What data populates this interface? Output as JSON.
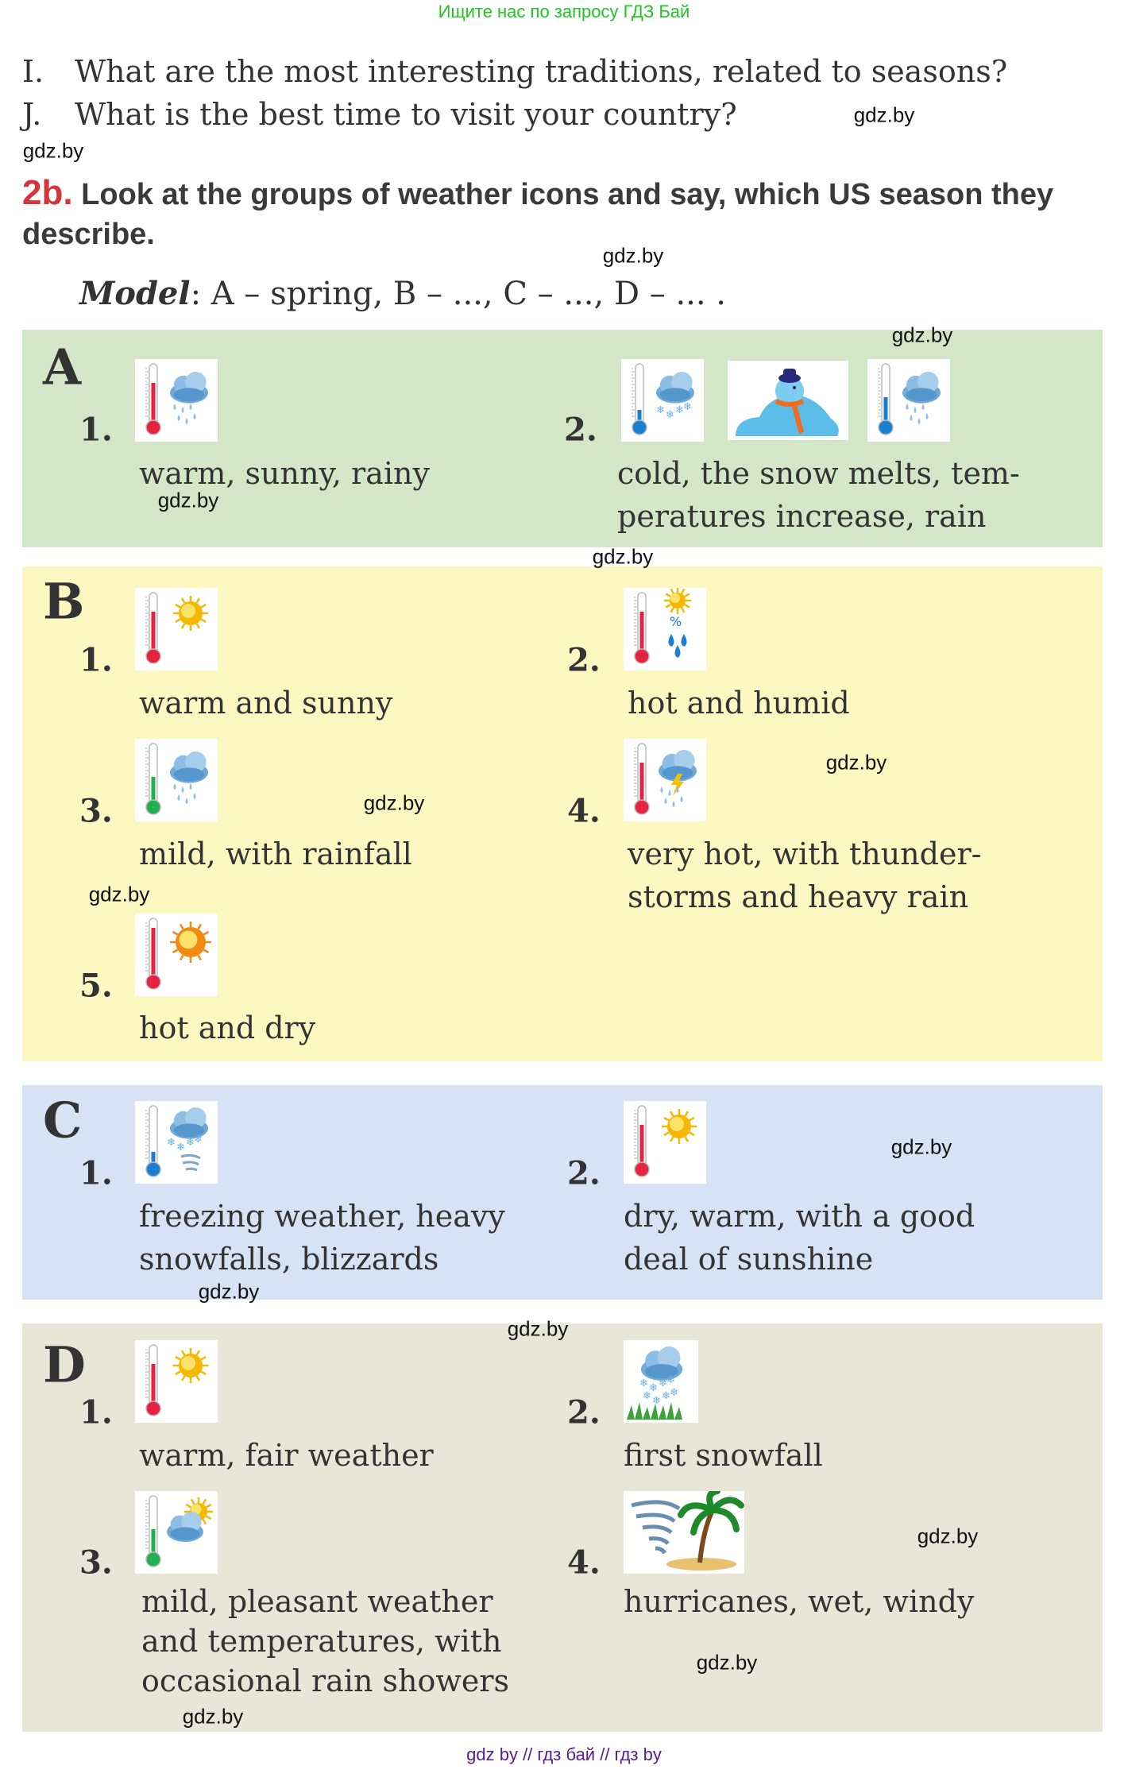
{
  "banner": "Ищите нас по запросу ГДЗ Бай",
  "questions": [
    {
      "label": "I.",
      "text": "What are the most interesting traditions, related to seasons?"
    },
    {
      "label": "J.",
      "text": "What is the best time to visit your country?"
    }
  ],
  "task": {
    "number": "2b.",
    "text": "Look at the groups of weather icons and say, which US season they describe."
  },
  "model": {
    "label": "Model",
    "text": ": A – spring, B – ..., C – ..., D – ... ."
  },
  "colors": {
    "A": "#d3e6c8",
    "B": "#fdf7c2",
    "C": "#d5e3f5",
    "D": "#e8e6d7",
    "accent": "#d2353a"
  },
  "groups": [
    {
      "letter": "A",
      "items": [
        {
          "num": "1.",
          "icons": [
            "thermometer-red-high+rain"
          ],
          "lines": [
            "warm, sunny, rainy"
          ]
        },
        {
          "num": "2.",
          "icons": [
            "thermometer-blue-low+snow",
            "melting-snowman",
            "thermometer-blue-mid+rain"
          ],
          "lines": [
            "cold, the snow melts, tem-",
            "peratures increase, rain"
          ]
        }
      ]
    },
    {
      "letter": "B",
      "items": [
        {
          "num": "1.",
          "icons": [
            "thermometer-red-high+sun"
          ],
          "lines": [
            "warm and sunny"
          ]
        },
        {
          "num": "2.",
          "icons": [
            "thermometer-red-high+humidity"
          ],
          "lines": [
            "hot and humid"
          ]
        },
        {
          "num": "3.",
          "icons": [
            "thermometer-green-mid+rain"
          ],
          "lines": [
            "mild, with rainfall"
          ]
        },
        {
          "num": "4.",
          "icons": [
            "thermometer-red-high+thunderstorm"
          ],
          "lines": [
            "very hot, with thunder-",
            "storms and heavy rain"
          ]
        },
        {
          "num": "5.",
          "icons": [
            "thermometer-red-full+hot-sun"
          ],
          "lines": [
            "hot and dry"
          ]
        }
      ]
    },
    {
      "letter": "C",
      "items": [
        {
          "num": "1.",
          "icons": [
            "thermometer-blue-low+blizzard"
          ],
          "lines": [
            "freezing weather, heavy",
            "snowfalls, blizzards"
          ]
        },
        {
          "num": "2.",
          "icons": [
            "thermometer-red-high+sun"
          ],
          "lines": [
            "dry, warm, with a good",
            "deal of sunshine"
          ]
        }
      ]
    },
    {
      "letter": "D",
      "items": [
        {
          "num": "1.",
          "icons": [
            "thermometer-red-high+sun"
          ],
          "lines": [
            "warm, fair weather"
          ]
        },
        {
          "num": "2.",
          "icons": [
            "snow-on-grass"
          ],
          "lines": [
            "first snowfall"
          ]
        },
        {
          "num": "3.",
          "icons": [
            "thermometer-green-mid+partly-cloudy"
          ],
          "lines": [
            "mild, pleasant weather",
            "and temperatures, with",
            "occasional rain showers"
          ]
        },
        {
          "num": "4.",
          "icons": [
            "hurricane-palm"
          ],
          "lines": [
            "hurricanes, wet, windy"
          ]
        }
      ]
    }
  ],
  "watermark": "gdz.by",
  "footer": "gdz by  //  гдз бай  //  гдз by"
}
